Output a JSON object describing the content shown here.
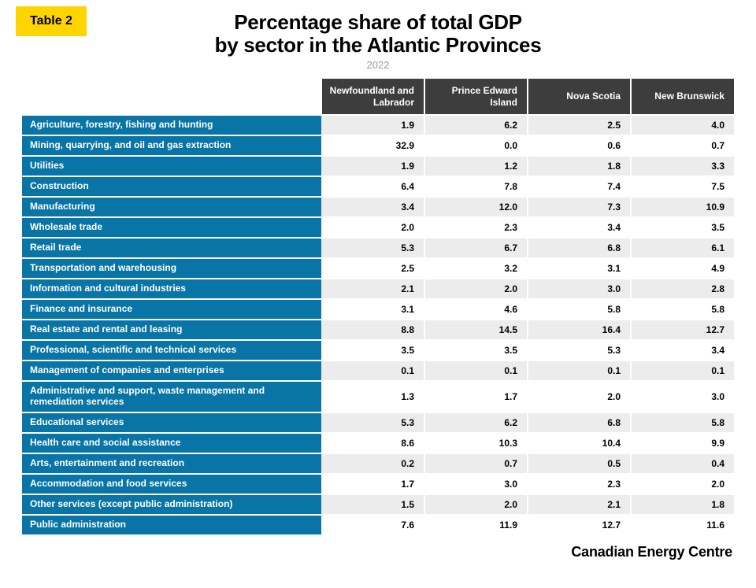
{
  "badge": {
    "text": "Table 2",
    "bg": "#ffd400",
    "color": "#000000"
  },
  "title_line1": "Percentage share of total GDP",
  "title_line2": "by sector in the Atlantic Provinces",
  "subtitle": "2022",
  "colors": {
    "header_bg": "#3d3d3d",
    "sector_bg": "#0974a6",
    "row_even": "#ececec",
    "row_odd": "#ffffff",
    "text": "#000000"
  },
  "columns": [
    "Newfoundland and Labrador",
    "Prince Edward Island",
    "Nova Scotia",
    "New Brunswick"
  ],
  "rows": [
    {
      "sector": "Agriculture, forestry, fishing and hunting",
      "v": [
        "1.9",
        "6.2",
        "2.5",
        "4.0"
      ]
    },
    {
      "sector": "Mining, quarrying, and oil and gas extraction",
      "v": [
        "32.9",
        "0.0",
        "0.6",
        "0.7"
      ]
    },
    {
      "sector": "Utilities",
      "v": [
        "1.9",
        "1.2",
        "1.8",
        "3.3"
      ]
    },
    {
      "sector": "Construction",
      "v": [
        "6.4",
        "7.8",
        "7.4",
        "7.5"
      ]
    },
    {
      "sector": "Manufacturing",
      "v": [
        "3.4",
        "12.0",
        "7.3",
        "10.9"
      ]
    },
    {
      "sector": "Wholesale trade",
      "v": [
        "2.0",
        "2.3",
        "3.4",
        "3.5"
      ]
    },
    {
      "sector": "Retail trade",
      "v": [
        "5.3",
        "6.7",
        "6.8",
        "6.1"
      ]
    },
    {
      "sector": "Transportation and warehousing",
      "v": [
        "2.5",
        "3.2",
        "3.1",
        "4.9"
      ]
    },
    {
      "sector": "Information and cultural industries",
      "v": [
        "2.1",
        "2.0",
        "3.0",
        "2.8"
      ]
    },
    {
      "sector": "Finance and insurance",
      "v": [
        "3.1",
        "4.6",
        "5.8",
        "5.8"
      ]
    },
    {
      "sector": "Real estate and rental and leasing",
      "v": [
        "8.8",
        "14.5",
        "16.4",
        "12.7"
      ]
    },
    {
      "sector": "Professional, scientific and technical services",
      "v": [
        "3.5",
        "3.5",
        "5.3",
        "3.4"
      ]
    },
    {
      "sector": "Management of companies and enterprises",
      "v": [
        "0.1",
        "0.1",
        "0.1",
        "0.1"
      ]
    },
    {
      "sector": "Administrative and support, waste management and remediation services",
      "v": [
        "1.3",
        "1.7",
        "2.0",
        "3.0"
      ]
    },
    {
      "sector": "Educational services",
      "v": [
        "5.3",
        "6.2",
        "6.8",
        "5.8"
      ]
    },
    {
      "sector": "Health care and social assistance",
      "v": [
        "8.6",
        "10.3",
        "10.4",
        "9.9"
      ]
    },
    {
      "sector": "Arts, entertainment and recreation",
      "v": [
        "0.2",
        "0.7",
        "0.5",
        "0.4"
      ]
    },
    {
      "sector": "Accommodation and food services",
      "v": [
        "1.7",
        "3.0",
        "2.3",
        "2.0"
      ]
    },
    {
      "sector": "Other services (except public administration)",
      "v": [
        "1.5",
        "2.0",
        "2.1",
        "1.8"
      ]
    },
    {
      "sector": "Public administration",
      "v": [
        "7.6",
        "11.9",
        "12.7",
        "11.6"
      ]
    }
  ],
  "footer": "Canadian Energy Centre"
}
